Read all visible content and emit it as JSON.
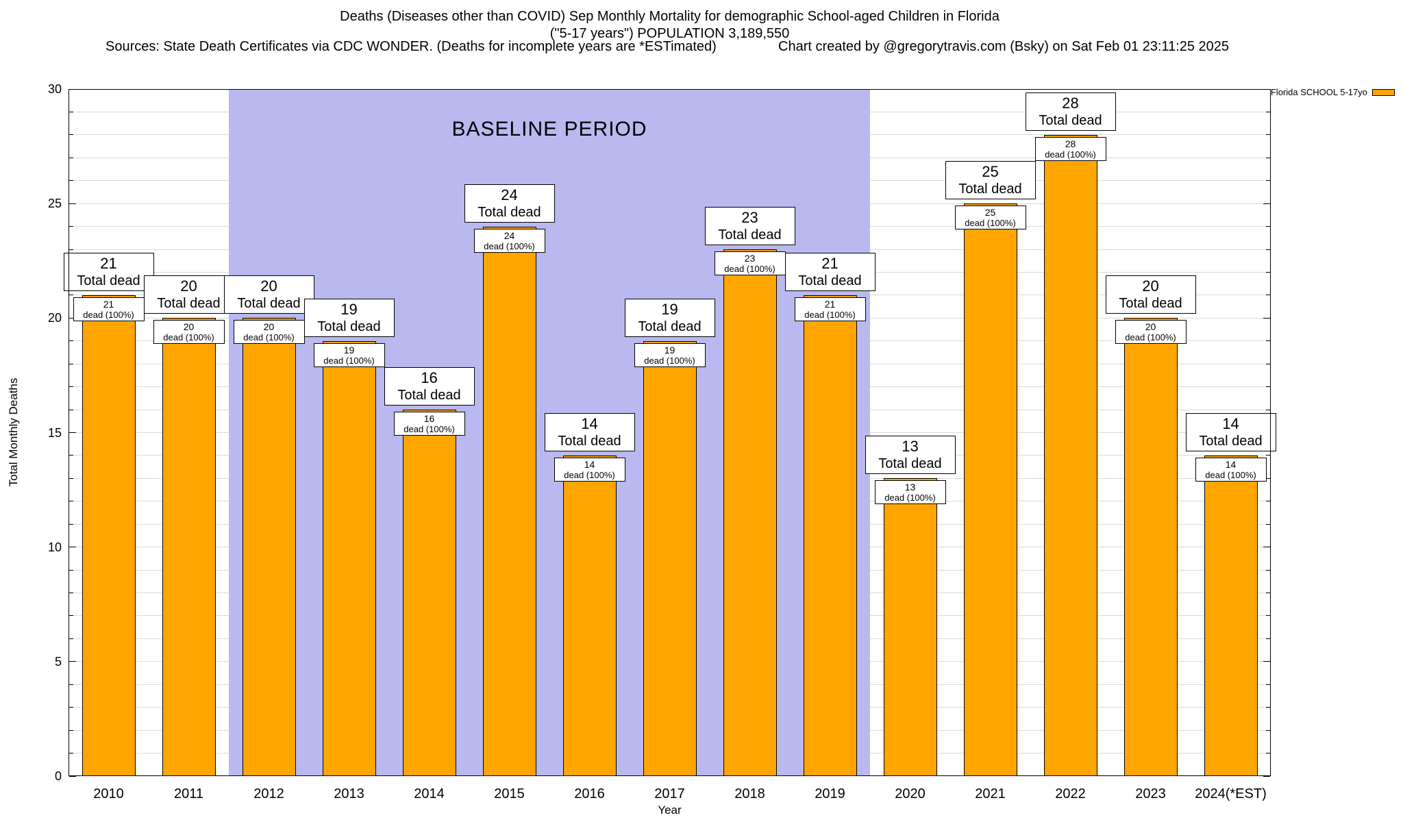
{
  "header": {
    "title_line1": "Deaths (Diseases other than COVID) Sep Monthly Mortality for demographic School-aged Children in Florida",
    "title_line2": "(\"5-17 years\") POPULATION 3,189,550",
    "sources": "Sources: State Death Certificates via CDC WONDER. (Deaths for incomplete years are *ESTimated)",
    "credit": "Chart created by @gregorytravis.com (Bsky) on Sat Feb 01 23:11:25 2025"
  },
  "legend": {
    "label": "Florida SCHOOL 5-17yo",
    "color": "#ffa500"
  },
  "chart_data": {
    "type": "bar",
    "title": "Deaths (Diseases other than COVID) Sep Monthly Mortality for demographic School-aged Children in Florida (\"5-17 years\") POPULATION 3,189,550",
    "xlabel": "Year",
    "ylabel": "Total Monthly Deaths",
    "categories": [
      "2010",
      "2011",
      "2012",
      "2013",
      "2014",
      "2015",
      "2016",
      "2017",
      "2018",
      "2019",
      "2020",
      "2021",
      "2022",
      "2023",
      "2024(*EST)"
    ],
    "values": [
      21,
      20,
      20,
      19,
      16,
      24,
      14,
      19,
      23,
      21,
      13,
      25,
      28,
      20,
      14
    ],
    "bar_total_label": "Total dead",
    "bar_inner_label": "dead (100%)",
    "ylim": [
      0,
      30
    ],
    "ytick_step": 5,
    "minor_grid_step": 1,
    "grid": true,
    "bar_color": "#ffa500",
    "bar_border_color": "#000000",
    "baseline": {
      "label": "BASELINE PERIOD",
      "start_category": "2012",
      "end_category": "2019",
      "color": "#b9b9f0"
    },
    "legend_position": "top-right"
  }
}
